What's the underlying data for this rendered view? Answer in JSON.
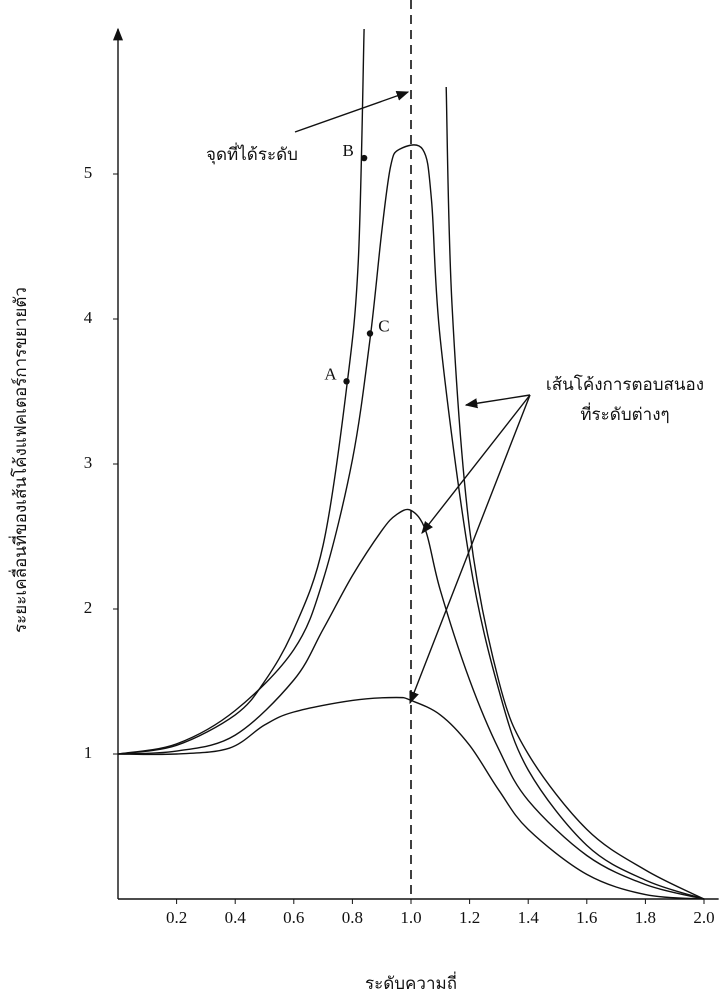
{
  "chart_data": {
    "type": "line",
    "xlabel": "ระดับความถี่",
    "ylabel": "ระยะเคลื่อนที่ของเส้นโค้งแฟคเตอร์การขยายตัว",
    "xlim": [
      0,
      2.05
    ],
    "ylim": [
      0,
      6
    ],
    "xticks": [
      0.2,
      0.4,
      0.6,
      0.8,
      {
        "value": 1,
        "label": "1.0"
      },
      1.2,
      1.4,
      1.6,
      1.8,
      {
        "value": 2,
        "label": "2.0"
      }
    ],
    "yticks": [
      1,
      2,
      3,
      4,
      5
    ],
    "vline": 1,
    "series": [
      {
        "color": "#111111",
        "x": [
          0,
          0.2,
          0.4,
          0.5,
          0.6,
          0.7,
          0.78,
          0.82,
          0.84,
          1,
          1.12,
          1.14,
          1.2,
          1.3,
          1.4,
          1.6,
          1.8,
          2.0
        ],
        "values": [
          1,
          1.06,
          1.27,
          1.5,
          1.86,
          2.44,
          3.52,
          4.4,
          6,
          null,
          5.6,
          4.1,
          2.55,
          1.5,
          1.0,
          0.48,
          0.2,
          0
        ]
      },
      {
        "color": "#111111",
        "x": [
          0,
          0.2,
          0.4,
          0.6,
          0.7,
          0.8,
          0.86,
          0.9,
          0.93,
          0.96,
          1.04,
          1.07,
          1.1,
          1.2,
          1.3,
          1.4,
          1.6,
          1.8,
          2.0
        ],
        "values": [
          1,
          1.07,
          1.3,
          1.72,
          2.2,
          3.03,
          3.86,
          4.6,
          5.05,
          5.17,
          5.17,
          4.82,
          3.86,
          2.34,
          1.44,
          0.89,
          0.37,
          0.13,
          0
        ]
      },
      {
        "color": "#111111",
        "x": [
          0,
          0.2,
          0.4,
          0.6,
          0.7,
          0.8,
          0.9,
          0.95,
          1.0,
          1.05,
          1.1,
          1.2,
          1.3,
          1.4,
          1.6,
          1.8,
          2.0
        ],
        "values": [
          1,
          1.02,
          1.13,
          1.51,
          1.86,
          2.23,
          2.54,
          2.65,
          2.68,
          2.54,
          2.13,
          1.51,
          1.03,
          0.68,
          0.3,
          0.1,
          0
        ]
      },
      {
        "color": "#111111",
        "x": [
          0,
          0.2,
          0.38,
          0.5,
          0.6,
          0.8,
          0.95,
          1.0,
          1.1,
          1.2,
          1.3,
          1.4,
          1.6,
          1.8,
          2.0
        ],
        "values": [
          1,
          1.0,
          1.04,
          1.2,
          1.29,
          1.37,
          1.39,
          1.37,
          1.27,
          1.06,
          0.75,
          0.48,
          0.17,
          0.03,
          0
        ]
      }
    ],
    "points": [
      {
        "label": "A",
        "x": 0.78,
        "y": 3.57
      },
      {
        "label": "B",
        "x": 0.84,
        "y": 5.11
      },
      {
        "label": "C",
        "x": 0.86,
        "y": 3.9
      }
    ],
    "annotations": [
      {
        "text": "จุดที่ได้ระดับ"
      },
      {
        "text": "เส้นโค้งการตอบสนอง"
      },
      {
        "text": "ที่ระดับต่างๆ"
      }
    ]
  }
}
